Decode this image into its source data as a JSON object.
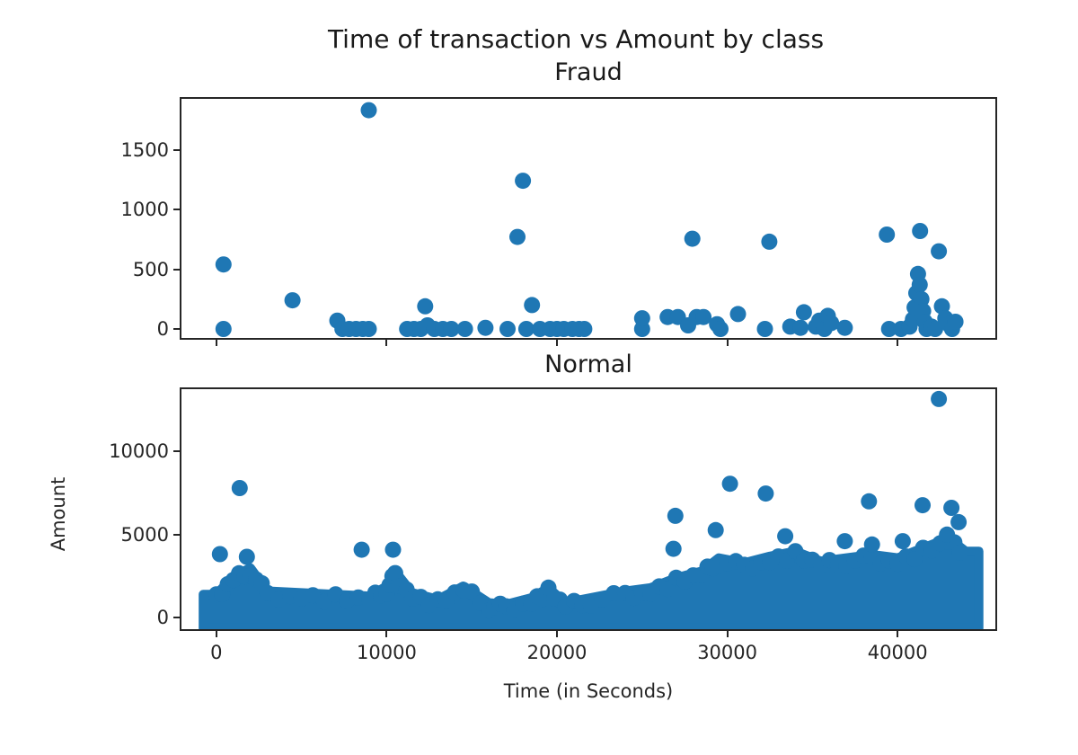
{
  "figure": {
    "suptitle": "Time of transaction vs Amount by class",
    "marker_color": "#1f77b4"
  },
  "panels": {
    "fraud": {
      "title": "Fraud",
      "ylabel": "",
      "yticks": [
        "0",
        "500",
        "1000",
        "1500"
      ],
      "xticks_labeled": false
    },
    "normal": {
      "title": "Normal",
      "ylabel": "Amount",
      "xlabel": "Time (in Seconds)",
      "yticks": [
        "0",
        "5000",
        "10000"
      ],
      "xticks": [
        "0",
        "10000",
        "20000",
        "30000",
        "40000"
      ]
    }
  },
  "chart_data": [
    {
      "type": "scatter",
      "title": "Fraud",
      "suptitle": "Time of transaction vs Amount by class",
      "xlabel": "",
      "ylabel": "",
      "xlim": [
        -2050,
        45740
      ],
      "ylim": [
        -75,
        1925
      ],
      "xticks": [
        0,
        10000,
        20000,
        30000,
        40000
      ],
      "yticks": [
        0,
        500,
        1000,
        1500
      ],
      "grid": false,
      "color": "#1f77b4",
      "points": [
        [
          420,
          0
        ],
        [
          420,
          540
        ],
        [
          4470,
          240
        ],
        [
          7100,
          70
        ],
        [
          7400,
          0
        ],
        [
          7800,
          0
        ],
        [
          8200,
          0
        ],
        [
          8600,
          0
        ],
        [
          8950,
          0
        ],
        [
          8950,
          1830
        ],
        [
          11200,
          0
        ],
        [
          11600,
          0
        ],
        [
          12000,
          0
        ],
        [
          12260,
          190
        ],
        [
          12400,
          30
        ],
        [
          12800,
          0
        ],
        [
          13300,
          0
        ],
        [
          13800,
          0
        ],
        [
          14600,
          0
        ],
        [
          15800,
          10
        ],
        [
          17100,
          0
        ],
        [
          17680,
          770
        ],
        [
          18000,
          1240
        ],
        [
          18200,
          0
        ],
        [
          18530,
          200
        ],
        [
          19000,
          0
        ],
        [
          19600,
          0
        ],
        [
          20000,
          0
        ],
        [
          20400,
          0
        ],
        [
          20900,
          0
        ],
        [
          21300,
          0
        ],
        [
          21600,
          0
        ],
        [
          25000,
          0
        ],
        [
          25000,
          90
        ],
        [
          26500,
          100
        ],
        [
          27100,
          100
        ],
        [
          27950,
          755
        ],
        [
          27700,
          30
        ],
        [
          28200,
          100
        ],
        [
          28600,
          100
        ],
        [
          29400,
          40
        ],
        [
          29600,
          0
        ],
        [
          30630,
          125
        ],
        [
          32210,
          0
        ],
        [
          32470,
          730
        ],
        [
          33700,
          20
        ],
        [
          34300,
          10
        ],
        [
          34500,
          140
        ],
        [
          35200,
          20
        ],
        [
          35400,
          70
        ],
        [
          35700,
          0
        ],
        [
          35900,
          110
        ],
        [
          36100,
          50
        ],
        [
          36900,
          10
        ],
        [
          39370,
          790
        ],
        [
          39500,
          0
        ],
        [
          40200,
          0
        ],
        [
          40700,
          20
        ],
        [
          40900,
          80
        ],
        [
          41000,
          180
        ],
        [
          41100,
          300
        ],
        [
          41200,
          460
        ],
        [
          41300,
          370
        ],
        [
          41320,
          820
        ],
        [
          41400,
          250
        ],
        [
          41500,
          150
        ],
        [
          41600,
          60
        ],
        [
          41700,
          0
        ],
        [
          42000,
          20
        ],
        [
          42200,
          0
        ],
        [
          42420,
          650
        ],
        [
          42600,
          190
        ],
        [
          42800,
          90
        ],
        [
          43000,
          40
        ],
        [
          43200,
          0
        ],
        [
          43400,
          60
        ]
      ]
    },
    {
      "type": "scatter",
      "title": "Normal",
      "xlabel": "Time (in Seconds)",
      "ylabel": "Amount",
      "xlim": [
        -2050,
        45740
      ],
      "ylim": [
        -700,
        13760
      ],
      "xticks": [
        0,
        10000,
        20000,
        30000,
        40000
      ],
      "yticks": [
        0,
        5000,
        10000
      ],
      "grid": false,
      "color": "#1f77b4",
      "outliers": [
        [
          42420,
          13170
        ],
        [
          30160,
          8060
        ],
        [
          1370,
          7800
        ],
        [
          32260,
          7470
        ],
        [
          38320,
          7000
        ],
        [
          41470,
          6770
        ],
        [
          43160,
          6610
        ],
        [
          26950,
          6130
        ],
        [
          43580,
          5750
        ],
        [
          29320,
          5270
        ],
        [
          26840,
          4140
        ],
        [
          8530,
          4090
        ],
        [
          10370,
          4090
        ],
        [
          210,
          3820
        ],
        [
          1790,
          3660
        ],
        [
          36900,
          4600
        ],
        [
          40300,
          4600
        ],
        [
          38500,
          4400
        ],
        [
          33400,
          4900
        ],
        [
          42900,
          5000
        ]
      ],
      "dense_band_upper_envelope": [
        [
          0,
          1400
        ],
        [
          1000,
          2500
        ],
        [
          2000,
          3000
        ],
        [
          3000,
          1600
        ],
        [
          5000,
          1500
        ],
        [
          7000,
          1400
        ],
        [
          9000,
          1300
        ],
        [
          10000,
          1900
        ],
        [
          10500,
          2800
        ],
        [
          11500,
          1500
        ],
        [
          13000,
          1100
        ],
        [
          14500,
          1900
        ],
        [
          16000,
          900
        ],
        [
          17000,
          800
        ],
        [
          18500,
          1200
        ],
        [
          19500,
          1800
        ],
        [
          20500,
          900
        ],
        [
          22000,
          1200
        ],
        [
          24000,
          1600
        ],
        [
          25500,
          1800
        ],
        [
          27000,
          2400
        ],
        [
          28500,
          2800
        ],
        [
          29500,
          3600
        ],
        [
          31000,
          3300
        ],
        [
          32500,
          3700
        ],
        [
          34000,
          4000
        ],
        [
          35500,
          3400
        ],
        [
          37000,
          3600
        ],
        [
          38500,
          3800
        ],
        [
          40000,
          3600
        ],
        [
          41500,
          4200
        ],
        [
          43000,
          4800
        ],
        [
          44000,
          4000
        ]
      ],
      "x_range_of_data": [
        -300,
        44300
      ]
    }
  ]
}
